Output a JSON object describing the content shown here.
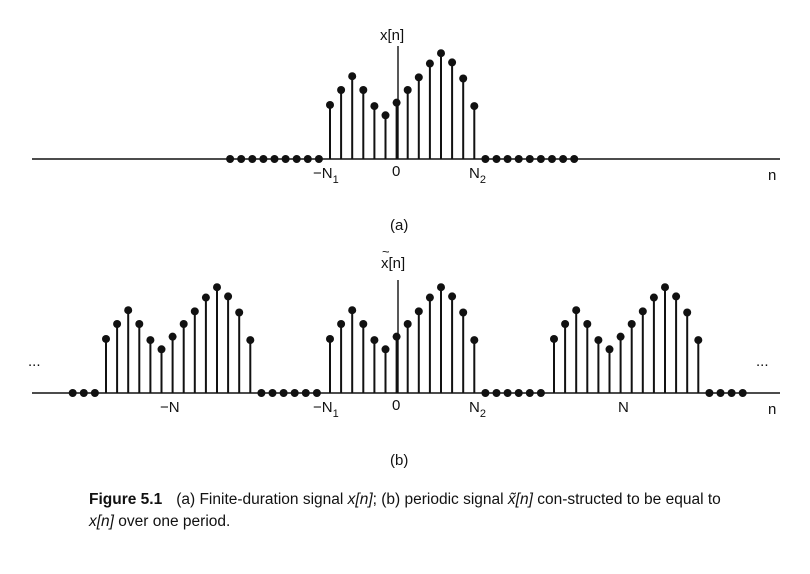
{
  "diagram_a": {
    "ylabel": "x[n]",
    "neg_n1": "−N",
    "n1_sub": "1",
    "zero": "0",
    "n2": "N",
    "n2_sub": "2",
    "xlabel": "n",
    "panel": "(a)",
    "samples": [
      0.47,
      0.6,
      0.72,
      0.6,
      0.46,
      0.38,
      0.49,
      0.6,
      0.71,
      0.83,
      0.92,
      0.84,
      0.7,
      0.46
    ]
  },
  "diagram_b": {
    "ylabel": "x[n]",
    "tilde": "~",
    "neg_n": "−N",
    "neg_n1": "−N",
    "n1_sub": "1",
    "zero": "0",
    "n2": "N",
    "n2_sub": "2",
    "n": "N",
    "xlabel": "n",
    "ellipsis_left": "...",
    "ellipsis_right": "...",
    "panel": "(b)"
  },
  "caption": {
    "figure_label": "Figure 5.1",
    "part1": "(a) Finite-duration signal ",
    "sym1": "x[n]",
    "part2": "; (b) periodic signal ",
    "sym2": "x̃[n]",
    "part3": " con-structed to be equal to ",
    "sym3": "x[n]",
    "part4": " over one period."
  }
}
